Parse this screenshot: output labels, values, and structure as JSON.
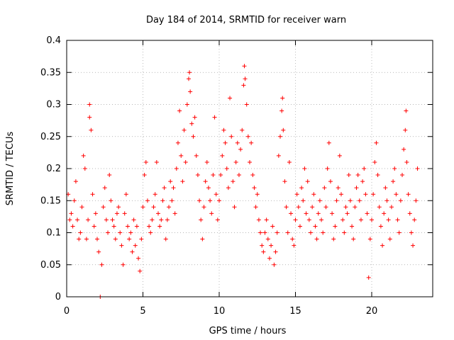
{
  "chart_data": {
    "type": "scatter",
    "title": "Day 184 of 2014, SRMTID for receiver warn",
    "xlabel": "GPS time / hours",
    "ylabel": "SRMTID / TECUs",
    "xlim": [
      0,
      24
    ],
    "ylim": [
      0,
      0.4
    ],
    "x_ticks": [
      0,
      5,
      10,
      15,
      20
    ],
    "x_tick_labels": [
      "0",
      "5",
      "10",
      "15",
      "20"
    ],
    "y_ticks": [
      0,
      0.05,
      0.1,
      0.15,
      0.2,
      0.25,
      0.3,
      0.35,
      0.4
    ],
    "y_tick_labels": [
      "0",
      "0.05",
      "0.1",
      "0.15",
      "0.2",
      "0.25",
      "0.3",
      "0.35",
      "0.4"
    ],
    "grid": true,
    "marker": "+",
    "color": "#ff0000",
    "series": [
      {
        "name": "SRMTID",
        "points": [
          [
            0.1,
            0.16
          ],
          [
            0.2,
            0.12
          ],
          [
            0.3,
            0.13
          ],
          [
            0.4,
            0.11
          ],
          [
            0.5,
            0.15
          ],
          [
            0.6,
            0.18
          ],
          [
            0.7,
            0.12
          ],
          [
            0.8,
            0.09
          ],
          [
            0.9,
            0.1
          ],
          [
            1.0,
            0.14
          ],
          [
            1.1,
            0.22
          ],
          [
            1.2,
            0.2
          ],
          [
            1.3,
            0.09
          ],
          [
            1.4,
            0.12
          ],
          [
            1.5,
            0.28
          ],
          [
            1.5,
            0.3
          ],
          [
            1.6,
            0.26
          ],
          [
            1.7,
            0.16
          ],
          [
            1.8,
            0.11
          ],
          [
            1.9,
            0.13
          ],
          [
            2.0,
            0.09
          ],
          [
            2.1,
            0.07
          ],
          [
            2.2,
            0.0
          ],
          [
            2.3,
            0.05
          ],
          [
            2.4,
            0.14
          ],
          [
            2.5,
            0.17
          ],
          [
            2.6,
            0.12
          ],
          [
            2.7,
            0.1
          ],
          [
            2.8,
            0.19
          ],
          [
            2.9,
            0.15
          ],
          [
            3.0,
            0.12
          ],
          [
            3.1,
            0.11
          ],
          [
            3.2,
            0.09
          ],
          [
            3.3,
            0.13
          ],
          [
            3.4,
            0.14
          ],
          [
            3.5,
            0.1
          ],
          [
            3.6,
            0.08
          ],
          [
            3.7,
            0.05
          ],
          [
            3.8,
            0.13
          ],
          [
            3.9,
            0.16
          ],
          [
            4.0,
            0.11
          ],
          [
            4.1,
            0.09
          ],
          [
            4.2,
            0.1
          ],
          [
            4.3,
            0.07
          ],
          [
            4.4,
            0.12
          ],
          [
            4.5,
            0.08
          ],
          [
            4.6,
            0.11
          ],
          [
            4.7,
            0.06
          ],
          [
            4.8,
            0.04
          ],
          [
            4.9,
            0.09
          ],
          [
            5.0,
            0.14
          ],
          [
            5.1,
            0.19
          ],
          [
            5.2,
            0.21
          ],
          [
            5.3,
            0.15
          ],
          [
            5.4,
            0.11
          ],
          [
            5.5,
            0.1
          ],
          [
            5.6,
            0.12
          ],
          [
            5.7,
            0.14
          ],
          [
            5.8,
            0.16
          ],
          [
            5.9,
            0.21
          ],
          [
            6.0,
            0.13
          ],
          [
            6.1,
            0.11
          ],
          [
            6.2,
            0.12
          ],
          [
            6.3,
            0.15
          ],
          [
            6.4,
            0.17
          ],
          [
            6.5,
            0.09
          ],
          [
            6.6,
            0.12
          ],
          [
            6.7,
            0.14
          ],
          [
            6.8,
            0.18
          ],
          [
            6.9,
            0.15
          ],
          [
            7.0,
            0.17
          ],
          [
            7.1,
            0.13
          ],
          [
            7.2,
            0.2
          ],
          [
            7.3,
            0.24
          ],
          [
            7.4,
            0.29
          ],
          [
            7.5,
            0.22
          ],
          [
            7.6,
            0.18
          ],
          [
            7.7,
            0.26
          ],
          [
            7.8,
            0.21
          ],
          [
            7.9,
            0.3
          ],
          [
            8.0,
            0.34
          ],
          [
            8.05,
            0.35
          ],
          [
            8.1,
            0.32
          ],
          [
            8.2,
            0.27
          ],
          [
            8.3,
            0.25
          ],
          [
            8.4,
            0.28
          ],
          [
            8.5,
            0.22
          ],
          [
            8.6,
            0.19
          ],
          [
            8.7,
            0.15
          ],
          [
            8.8,
            0.12
          ],
          [
            8.9,
            0.09
          ],
          [
            9.0,
            0.14
          ],
          [
            9.1,
            0.18
          ],
          [
            9.2,
            0.21
          ],
          [
            9.3,
            0.17
          ],
          [
            9.4,
            0.15
          ],
          [
            9.5,
            0.13
          ],
          [
            9.6,
            0.19
          ],
          [
            9.7,
            0.28
          ],
          [
            9.8,
            0.16
          ],
          [
            9.9,
            0.12
          ],
          [
            10.0,
            0.15
          ],
          [
            10.1,
            0.19
          ],
          [
            10.2,
            0.22
          ],
          [
            10.3,
            0.26
          ],
          [
            10.4,
            0.24
          ],
          [
            10.5,
            0.2
          ],
          [
            10.6,
            0.17
          ],
          [
            10.7,
            0.31
          ],
          [
            10.8,
            0.25
          ],
          [
            10.9,
            0.18
          ],
          [
            11.0,
            0.14
          ],
          [
            11.1,
            0.21
          ],
          [
            11.2,
            0.24
          ],
          [
            11.3,
            0.19
          ],
          [
            11.4,
            0.23
          ],
          [
            11.5,
            0.26
          ],
          [
            11.6,
            0.33
          ],
          [
            11.65,
            0.36
          ],
          [
            11.7,
            0.34
          ],
          [
            11.8,
            0.3
          ],
          [
            11.9,
            0.25
          ],
          [
            12.0,
            0.21
          ],
          [
            12.1,
            0.24
          ],
          [
            12.2,
            0.19
          ],
          [
            12.3,
            0.17
          ],
          [
            12.4,
            0.14
          ],
          [
            12.5,
            0.16
          ],
          [
            12.6,
            0.12
          ],
          [
            12.7,
            0.1
          ],
          [
            12.8,
            0.08
          ],
          [
            12.9,
            0.07
          ],
          [
            13.0,
            0.1
          ],
          [
            13.1,
            0.12
          ],
          [
            13.2,
            0.09
          ],
          [
            13.3,
            0.06
          ],
          [
            13.4,
            0.08
          ],
          [
            13.5,
            0.11
          ],
          [
            13.6,
            0.05
          ],
          [
            13.7,
            0.07
          ],
          [
            13.8,
            0.1
          ],
          [
            13.9,
            0.22
          ],
          [
            14.0,
            0.25
          ],
          [
            14.1,
            0.29
          ],
          [
            14.15,
            0.31
          ],
          [
            14.2,
            0.26
          ],
          [
            14.3,
            0.18
          ],
          [
            14.4,
            0.14
          ],
          [
            14.5,
            0.1
          ],
          [
            14.6,
            0.21
          ],
          [
            14.7,
            0.13
          ],
          [
            14.8,
            0.09
          ],
          [
            14.9,
            0.08
          ],
          [
            15.0,
            0.12
          ],
          [
            15.1,
            0.16
          ],
          [
            15.2,
            0.14
          ],
          [
            15.3,
            0.11
          ],
          [
            15.4,
            0.17
          ],
          [
            15.5,
            0.15
          ],
          [
            15.6,
            0.2
          ],
          [
            15.7,
            0.13
          ],
          [
            15.8,
            0.18
          ],
          [
            15.9,
            0.12
          ],
          [
            16.0,
            0.1
          ],
          [
            16.1,
            0.14
          ],
          [
            16.2,
            0.16
          ],
          [
            16.3,
            0.11
          ],
          [
            16.4,
            0.09
          ],
          [
            16.5,
            0.13
          ],
          [
            16.6,
            0.15
          ],
          [
            16.7,
            0.12
          ],
          [
            16.8,
            0.1
          ],
          [
            16.9,
            0.17
          ],
          [
            17.0,
            0.14
          ],
          [
            17.1,
            0.2
          ],
          [
            17.2,
            0.24
          ],
          [
            17.3,
            0.18
          ],
          [
            17.4,
            0.13
          ],
          [
            17.5,
            0.09
          ],
          [
            17.6,
            0.11
          ],
          [
            17.7,
            0.15
          ],
          [
            17.8,
            0.17
          ],
          [
            17.9,
            0.22
          ],
          [
            18.0,
            0.16
          ],
          [
            18.1,
            0.12
          ],
          [
            18.2,
            0.1
          ],
          [
            18.3,
            0.14
          ],
          [
            18.4,
            0.13
          ],
          [
            18.5,
            0.19
          ],
          [
            18.6,
            0.15
          ],
          [
            18.7,
            0.11
          ],
          [
            18.8,
            0.09
          ],
          [
            18.9,
            0.14
          ],
          [
            19.0,
            0.17
          ],
          [
            19.1,
            0.19
          ],
          [
            19.2,
            0.15
          ],
          [
            19.3,
            0.12
          ],
          [
            19.4,
            0.18
          ],
          [
            19.5,
            0.2
          ],
          [
            19.6,
            0.16
          ],
          [
            19.7,
            0.13
          ],
          [
            19.8,
            0.03
          ],
          [
            19.9,
            0.09
          ],
          [
            20.0,
            0.12
          ],
          [
            20.1,
            0.16
          ],
          [
            20.2,
            0.21
          ],
          [
            20.3,
            0.24
          ],
          [
            20.4,
            0.19
          ],
          [
            20.5,
            0.14
          ],
          [
            20.6,
            0.11
          ],
          [
            20.7,
            0.08
          ],
          [
            20.8,
            0.13
          ],
          [
            20.9,
            0.17
          ],
          [
            21.0,
            0.15
          ],
          [
            21.1,
            0.12
          ],
          [
            21.2,
            0.09
          ],
          [
            21.3,
            0.14
          ],
          [
            21.4,
            0.18
          ],
          [
            21.5,
            0.2
          ],
          [
            21.6,
            0.16
          ],
          [
            21.7,
            0.12
          ],
          [
            21.8,
            0.1
          ],
          [
            21.9,
            0.15
          ],
          [
            22.0,
            0.19
          ],
          [
            22.1,
            0.23
          ],
          [
            22.2,
            0.26
          ],
          [
            22.25,
            0.29
          ],
          [
            22.3,
            0.21
          ],
          [
            22.4,
            0.16
          ],
          [
            22.5,
            0.13
          ],
          [
            22.6,
            0.1
          ],
          [
            22.7,
            0.08
          ],
          [
            22.8,
            0.12
          ],
          [
            22.9,
            0.15
          ],
          [
            23.0,
            0.2
          ]
        ]
      }
    ]
  }
}
